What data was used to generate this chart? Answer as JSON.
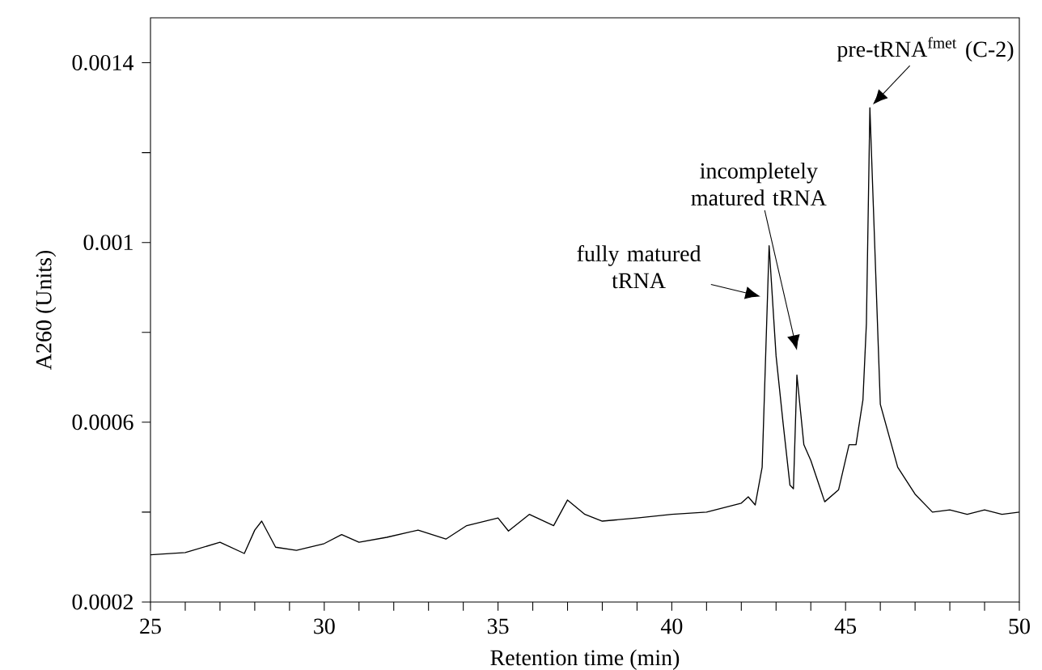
{
  "chart_data": {
    "type": "line",
    "xlabel": "Retention time (min)",
    "ylabel": "A260 (Units)",
    "xlim": [
      25,
      50
    ],
    "ylim": [
      0.0002,
      0.0015
    ],
    "xticks": [
      25,
      {
        "value": 26,
        "label": null
      },
      {
        "value": 27,
        "label": null
      },
      {
        "value": 28,
        "label": null
      },
      {
        "value": 29,
        "label": null
      },
      30,
      {
        "value": 31,
        "label": null
      },
      {
        "value": 32,
        "label": null
      },
      {
        "value": 33,
        "label": null
      },
      {
        "value": 34,
        "label": null
      },
      35,
      {
        "value": 36,
        "label": null
      },
      {
        "value": 37,
        "label": null
      },
      {
        "value": 38,
        "label": null
      },
      {
        "value": 39,
        "label": null
      },
      40,
      {
        "value": 41,
        "label": null
      },
      {
        "value": 42,
        "label": null
      },
      {
        "value": 43,
        "label": null
      },
      {
        "value": 44,
        "label": null
      },
      45,
      {
        "value": 46,
        "label": null
      },
      {
        "value": 47,
        "label": null
      },
      {
        "value": 48,
        "label": null
      },
      {
        "value": 49,
        "label": null
      },
      50
    ],
    "yticks": [
      0.0002,
      {
        "value": 0.0004,
        "label": null
      },
      0.0006,
      {
        "value": 0.0008,
        "label": null
      },
      0.001,
      {
        "value": 0.0012,
        "label": null
      },
      0.0014
    ],
    "x": [
      25,
      26,
      27,
      27.7,
      28,
      28.2,
      28.6,
      29.2,
      30,
      30.5,
      31,
      31.8,
      32.7,
      33.5,
      34.1,
      35,
      35.3,
      35.9,
      36.6,
      37,
      37.5,
      38,
      39,
      40,
      41,
      42,
      42.2,
      42.4,
      42.6,
      42.8,
      43.0,
      43.2,
      43.4,
      43.5,
      43.6,
      43.8,
      44.0,
      44.4,
      44.8,
      45.1,
      45.3,
      45.5,
      45.6,
      45.7,
      46.0,
      46.5,
      47,
      47.5,
      48,
      48.5,
      49,
      49.5,
      50
    ],
    "series": [
      {
        "color": "#000000",
        "values": [
          0.000305,
          0.00031,
          0.000333,
          0.000308,
          0.00036,
          0.00038,
          0.000322,
          0.000315,
          0.00033,
          0.00035,
          0.000333,
          0.000344,
          0.00036,
          0.00034,
          0.00037,
          0.000387,
          0.000358,
          0.000395,
          0.00037,
          0.000427,
          0.000395,
          0.00038,
          0.000387,
          0.000395,
          0.0004,
          0.00042,
          0.000434,
          0.000416,
          0.0005,
          0.000993,
          0.000748,
          0.0006,
          0.00046,
          0.000452,
          0.000705,
          0.00055,
          0.000515,
          0.000423,
          0.00045,
          0.00055,
          0.00055,
          0.00065,
          0.00082,
          0.0013,
          0.00064,
          0.0005,
          0.00044,
          0.0004,
          0.000405,
          0.000395,
          0.000405,
          0.000395,
          0.0004
        ]
      }
    ],
    "annotations": [
      "fully matured tRNA",
      "incompletely matured tRNA",
      {
        "text": "pre-tRNA$^{fmet}$ (C-2)",
        "x": 45.7,
        "y": 0.0013
      }
    ]
  }
}
